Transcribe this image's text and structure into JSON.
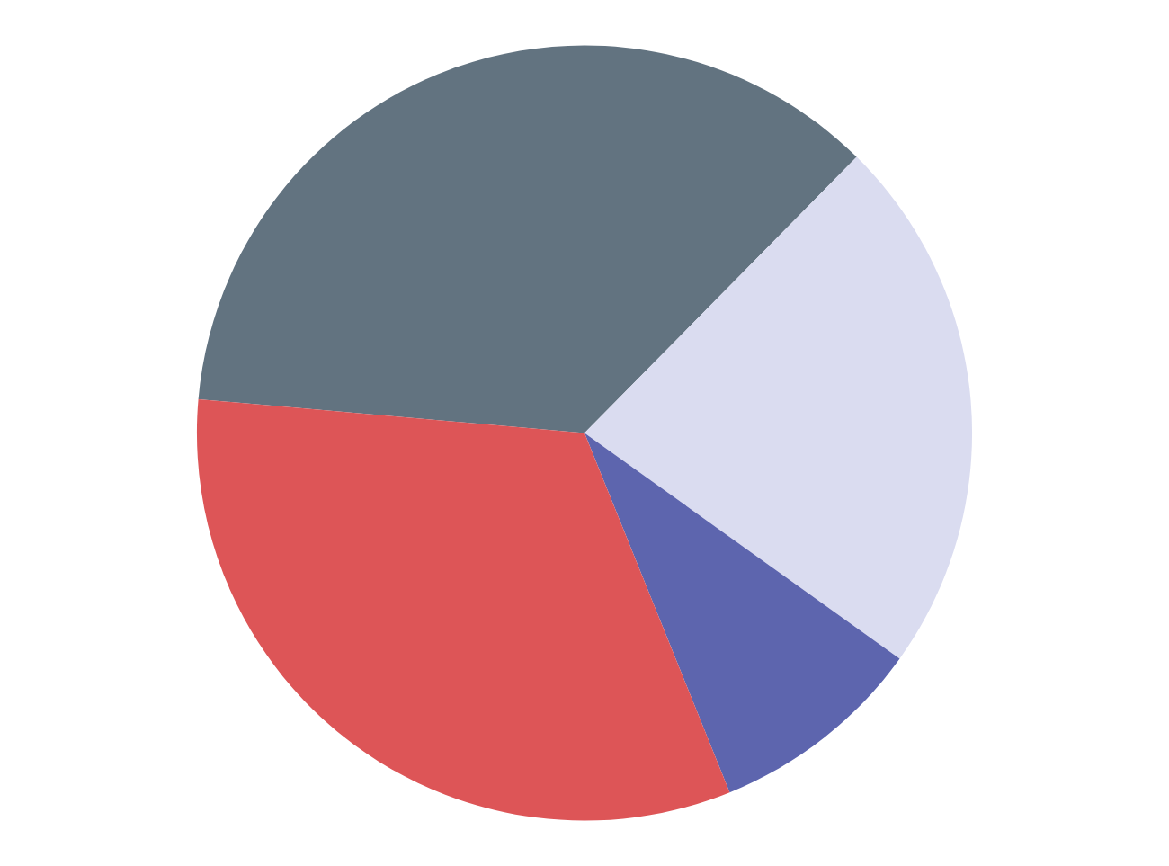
{
  "chart_data": {
    "type": "pie",
    "categories": [
      null,
      null,
      null,
      null
    ],
    "values": [
      36,
      22.5,
      9,
      32.5
    ],
    "colors": [
      "#627380",
      "#dadcf0",
      "#5d65ae",
      "#dd5557"
    ]
  }
}
